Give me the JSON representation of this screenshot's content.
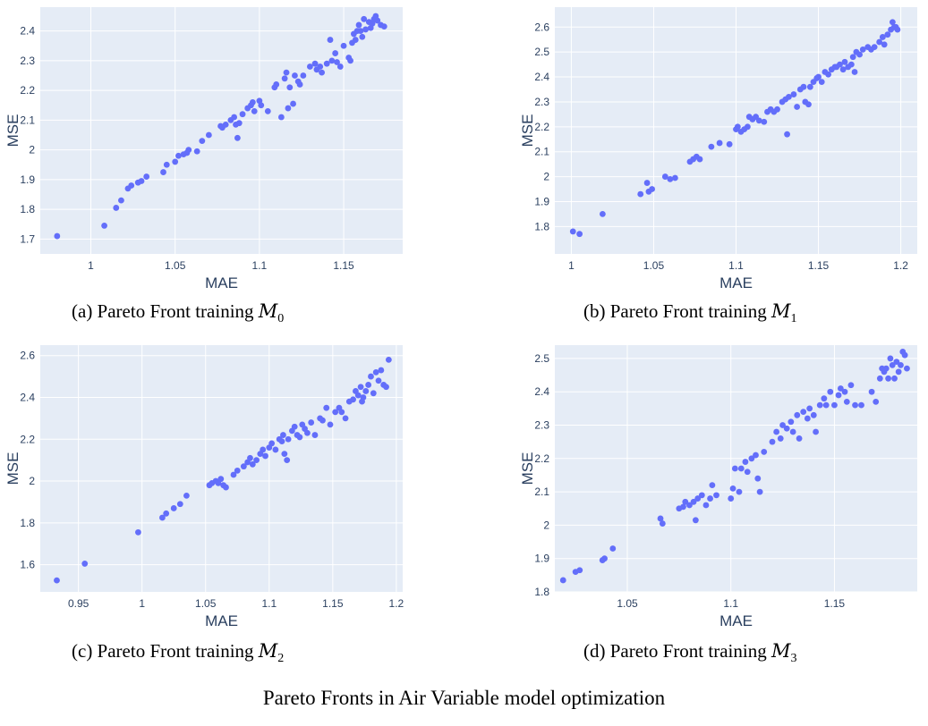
{
  "figure": {
    "title": "Pareto Fronts in Air Variable model optimization"
  },
  "colors": {
    "plot_bg": "#e5ecf6",
    "marker": "#636efa",
    "text": "#2a3f5f"
  },
  "chart_data": [
    {
      "type": "scatter",
      "caption": {
        "prefix": "(a) Pareto Front training ",
        "symbol": "M",
        "subscript": "0"
      },
      "xlabel": "MAE",
      "ylabel": "MSE",
      "xlim": [
        0.97,
        1.185
      ],
      "ylim": [
        1.65,
        2.48
      ],
      "xticks": [
        1,
        1.05,
        1.1,
        1.15
      ],
      "xtick_labels": [
        "1",
        "1.05",
        "1.1",
        "1.15"
      ],
      "yticks": [
        1.7,
        1.8,
        1.9,
        2,
        2.1,
        2.2,
        2.3,
        2.4
      ],
      "ytick_labels": [
        "1.7",
        "1.8",
        "1.9",
        "2",
        "2.1",
        "2.2",
        "2.3",
        "2.4"
      ],
      "grid": true,
      "points": [
        [
          0.98,
          1.71
        ],
        [
          1.008,
          1.745
        ],
        [
          1.015,
          1.805
        ],
        [
          1.018,
          1.83
        ],
        [
          1.022,
          1.87
        ],
        [
          1.024,
          1.88
        ],
        [
          1.028,
          1.89
        ],
        [
          1.03,
          1.895
        ],
        [
          1.033,
          1.91
        ],
        [
          1.043,
          1.925
        ],
        [
          1.045,
          1.95
        ],
        [
          1.05,
          1.96
        ],
        [
          1.052,
          1.98
        ],
        [
          1.055,
          1.985
        ],
        [
          1.057,
          1.99
        ],
        [
          1.058,
          2.0
        ],
        [
          1.063,
          1.995
        ],
        [
          1.066,
          2.03
        ],
        [
          1.07,
          2.05
        ],
        [
          1.077,
          2.08
        ],
        [
          1.078,
          2.075
        ],
        [
          1.08,
          2.085
        ],
        [
          1.083,
          2.1
        ],
        [
          1.085,
          2.11
        ],
        [
          1.086,
          2.085
        ],
        [
          1.088,
          2.09
        ],
        [
          1.087,
          2.04
        ],
        [
          1.09,
          2.12
        ],
        [
          1.093,
          2.14
        ],
        [
          1.095,
          2.15
        ],
        [
          1.096,
          2.16
        ],
        [
          1.097,
          2.13
        ],
        [
          1.1,
          2.165
        ],
        [
          1.101,
          2.15
        ],
        [
          1.105,
          2.13
        ],
        [
          1.109,
          2.21
        ],
        [
          1.11,
          2.22
        ],
        [
          1.113,
          2.11
        ],
        [
          1.115,
          2.24
        ],
        [
          1.116,
          2.26
        ],
        [
          1.117,
          2.14
        ],
        [
          1.118,
          2.21
        ],
        [
          1.12,
          2.155
        ],
        [
          1.121,
          2.25
        ],
        [
          1.123,
          2.23
        ],
        [
          1.124,
          2.22
        ],
        [
          1.126,
          2.25
        ],
        [
          1.13,
          2.28
        ],
        [
          1.133,
          2.29
        ],
        [
          1.134,
          2.27
        ],
        [
          1.136,
          2.28
        ],
        [
          1.137,
          2.26
        ],
        [
          1.14,
          2.29
        ],
        [
          1.142,
          2.37
        ],
        [
          1.143,
          2.3
        ],
        [
          1.145,
          2.325
        ],
        [
          1.146,
          2.295
        ],
        [
          1.148,
          2.28
        ],
        [
          1.15,
          2.35
        ],
        [
          1.153,
          2.31
        ],
        [
          1.154,
          2.3
        ],
        [
          1.155,
          2.36
        ],
        [
          1.156,
          2.39
        ],
        [
          1.157,
          2.37
        ],
        [
          1.158,
          2.4
        ],
        [
          1.159,
          2.42
        ],
        [
          1.16,
          2.4
        ],
        [
          1.161,
          2.38
        ],
        [
          1.162,
          2.44
        ],
        [
          1.163,
          2.405
        ],
        [
          1.165,
          2.43
        ],
        [
          1.166,
          2.41
        ],
        [
          1.167,
          2.425
        ],
        [
          1.168,
          2.44
        ],
        [
          1.169,
          2.45
        ],
        [
          1.17,
          2.435
        ],
        [
          1.172,
          2.42
        ],
        [
          1.174,
          2.415
        ]
      ]
    },
    {
      "type": "scatter",
      "caption": {
        "prefix": "(b) Pareto Front training ",
        "symbol": "M",
        "subscript": "1"
      },
      "xlabel": "MAE",
      "ylabel": "MSE",
      "xlim": [
        0.99,
        1.21
      ],
      "ylim": [
        1.69,
        2.68
      ],
      "xticks": [
        1,
        1.05,
        1.1,
        1.15,
        1.2
      ],
      "xtick_labels": [
        "1",
        "1.05",
        "1.1",
        "1.15",
        "1.2"
      ],
      "yticks": [
        1.8,
        1.9,
        2,
        2.1,
        2.2,
        2.3,
        2.4,
        2.5,
        2.6
      ],
      "ytick_labels": [
        "1.8",
        "1.9",
        "2",
        "2.1",
        "2.2",
        "2.3",
        "2.4",
        "2.5",
        "2.6"
      ],
      "grid": true,
      "points": [
        [
          1.001,
          1.78
        ],
        [
          1.005,
          1.77
        ],
        [
          1.019,
          1.85
        ],
        [
          1.042,
          1.93
        ],
        [
          1.046,
          1.975
        ],
        [
          1.047,
          1.94
        ],
        [
          1.049,
          1.95
        ],
        [
          1.057,
          2.0
        ],
        [
          1.06,
          1.99
        ],
        [
          1.063,
          1.995
        ],
        [
          1.072,
          2.06
        ],
        [
          1.074,
          2.07
        ],
        [
          1.076,
          2.08
        ],
        [
          1.078,
          2.07
        ],
        [
          1.085,
          2.12
        ],
        [
          1.09,
          2.135
        ],
        [
          1.096,
          2.13
        ],
        [
          1.1,
          2.19
        ],
        [
          1.101,
          2.2
        ],
        [
          1.103,
          2.18
        ],
        [
          1.105,
          2.19
        ],
        [
          1.107,
          2.2
        ],
        [
          1.108,
          2.24
        ],
        [
          1.11,
          2.23
        ],
        [
          1.112,
          2.24
        ],
        [
          1.114,
          2.225
        ],
        [
          1.117,
          2.22
        ],
        [
          1.119,
          2.26
        ],
        [
          1.121,
          2.27
        ],
        [
          1.123,
          2.26
        ],
        [
          1.125,
          2.27
        ],
        [
          1.128,
          2.3
        ],
        [
          1.13,
          2.31
        ],
        [
          1.131,
          2.17
        ],
        [
          1.132,
          2.32
        ],
        [
          1.135,
          2.33
        ],
        [
          1.137,
          2.28
        ],
        [
          1.139,
          2.35
        ],
        [
          1.141,
          2.36
        ],
        [
          1.142,
          2.3
        ],
        [
          1.144,
          2.29
        ],
        [
          1.145,
          2.36
        ],
        [
          1.147,
          2.38
        ],
        [
          1.149,
          2.395
        ],
        [
          1.15,
          2.4
        ],
        [
          1.152,
          2.38
        ],
        [
          1.154,
          2.42
        ],
        [
          1.156,
          2.41
        ],
        [
          1.158,
          2.43
        ],
        [
          1.16,
          2.44
        ],
        [
          1.161,
          2.44
        ],
        [
          1.163,
          2.45
        ],
        [
          1.165,
          2.43
        ],
        [
          1.166,
          2.46
        ],
        [
          1.168,
          2.44
        ],
        [
          1.17,
          2.45
        ],
        [
          1.171,
          2.48
        ],
        [
          1.173,
          2.5
        ],
        [
          1.175,
          2.49
        ],
        [
          1.177,
          2.51
        ],
        [
          1.18,
          2.52
        ],
        [
          1.182,
          2.51
        ],
        [
          1.184,
          2.52
        ],
        [
          1.187,
          2.54
        ],
        [
          1.189,
          2.56
        ],
        [
          1.19,
          2.53
        ],
        [
          1.192,
          2.57
        ],
        [
          1.194,
          2.59
        ],
        [
          1.195,
          2.62
        ],
        [
          1.196,
          2.6
        ],
        [
          1.197,
          2.6
        ],
        [
          1.198,
          2.59
        ],
        [
          1.172,
          2.42
        ]
      ]
    },
    {
      "type": "scatter",
      "caption": {
        "prefix": "(c) Pareto Front training ",
        "symbol": "M",
        "subscript": "2"
      },
      "xlabel": "MAE",
      "ylabel": "MSE",
      "xlim": [
        0.92,
        1.205
      ],
      "ylim": [
        1.47,
        2.65
      ],
      "xticks": [
        0.95,
        1,
        1.05,
        1.1,
        1.15,
        1.2
      ],
      "xtick_labels": [
        "0.95",
        "1",
        "1.05",
        "1.1",
        "1.15",
        "1.2"
      ],
      "yticks": [
        1.6,
        1.8,
        2,
        2.2,
        2.4,
        2.6
      ],
      "ytick_labels": [
        "1.6",
        "1.8",
        "2",
        "2.2",
        "2.4",
        "2.6"
      ],
      "grid": true,
      "points": [
        [
          0.933,
          1.525
        ],
        [
          0.955,
          1.605
        ],
        [
          0.997,
          1.755
        ],
        [
          1.016,
          1.825
        ],
        [
          1.019,
          1.845
        ],
        [
          1.025,
          1.87
        ],
        [
          1.03,
          1.89
        ],
        [
          1.035,
          1.93
        ],
        [
          1.053,
          1.98
        ],
        [
          1.055,
          1.99
        ],
        [
          1.058,
          2.0
        ],
        [
          1.06,
          1.99
        ],
        [
          1.062,
          2.01
        ],
        [
          1.064,
          1.98
        ],
        [
          1.066,
          1.97
        ],
        [
          1.072,
          2.03
        ],
        [
          1.075,
          2.05
        ],
        [
          1.08,
          2.07
        ],
        [
          1.083,
          2.09
        ],
        [
          1.085,
          2.11
        ],
        [
          1.087,
          2.08
        ],
        [
          1.09,
          2.1
        ],
        [
          1.093,
          2.13
        ],
        [
          1.095,
          2.15
        ],
        [
          1.097,
          2.12
        ],
        [
          1.1,
          2.16
        ],
        [
          1.102,
          2.18
        ],
        [
          1.105,
          2.15
        ],
        [
          1.108,
          2.2
        ],
        [
          1.11,
          2.19
        ],
        [
          1.111,
          2.22
        ],
        [
          1.112,
          2.13
        ],
        [
          1.114,
          2.1
        ],
        [
          1.115,
          2.2
        ],
        [
          1.118,
          2.24
        ],
        [
          1.12,
          2.26
        ],
        [
          1.122,
          2.22
        ],
        [
          1.124,
          2.21
        ],
        [
          1.126,
          2.27
        ],
        [
          1.128,
          2.25
        ],
        [
          1.13,
          2.23
        ],
        [
          1.133,
          2.28
        ],
        [
          1.136,
          2.22
        ],
        [
          1.14,
          2.3
        ],
        [
          1.142,
          2.29
        ],
        [
          1.145,
          2.35
        ],
        [
          1.148,
          2.27
        ],
        [
          1.152,
          2.33
        ],
        [
          1.155,
          2.35
        ],
        [
          1.157,
          2.33
        ],
        [
          1.16,
          2.3
        ],
        [
          1.163,
          2.38
        ],
        [
          1.166,
          2.39
        ],
        [
          1.168,
          2.43
        ],
        [
          1.17,
          2.41
        ],
        [
          1.172,
          2.45
        ],
        [
          1.174,
          2.4
        ],
        [
          1.176,
          2.43
        ],
        [
          1.178,
          2.46
        ],
        [
          1.18,
          2.5
        ],
        [
          1.182,
          2.42
        ],
        [
          1.184,
          2.52
        ],
        [
          1.186,
          2.48
        ],
        [
          1.188,
          2.53
        ],
        [
          1.19,
          2.46
        ],
        [
          1.192,
          2.45
        ],
        [
          1.194,
          2.58
        ],
        [
          1.173,
          2.38
        ]
      ]
    },
    {
      "type": "scatter",
      "caption": {
        "prefix": "(d) Pareto Front training ",
        "symbol": "M",
        "subscript": "3"
      },
      "xlabel": "MAE",
      "ylabel": "MSE",
      "xlim": [
        1.015,
        1.19
      ],
      "ylim": [
        1.8,
        2.54
      ],
      "xticks": [
        1.05,
        1.1,
        1.15
      ],
      "xtick_labels": [
        "1.05",
        "1.1",
        "1.15"
      ],
      "yticks": [
        1.8,
        1.9,
        2,
        2.1,
        2.2,
        2.3,
        2.4,
        2.5
      ],
      "ytick_labels": [
        "1.8",
        "1.9",
        "2",
        "2.1",
        "2.2",
        "2.3",
        "2.4",
        "2.5"
      ],
      "grid": true,
      "points": [
        [
          1.019,
          1.835
        ],
        [
          1.025,
          1.86
        ],
        [
          1.027,
          1.865
        ],
        [
          1.038,
          1.895
        ],
        [
          1.039,
          1.9
        ],
        [
          1.043,
          1.93
        ],
        [
          1.066,
          2.02
        ],
        [
          1.067,
          2.005
        ],
        [
          1.075,
          2.05
        ],
        [
          1.077,
          2.055
        ],
        [
          1.078,
          2.07
        ],
        [
          1.08,
          2.06
        ],
        [
          1.082,
          2.07
        ],
        [
          1.083,
          2.015
        ],
        [
          1.084,
          2.08
        ],
        [
          1.086,
          2.09
        ],
        [
          1.088,
          2.06
        ],
        [
          1.09,
          2.08
        ],
        [
          1.091,
          2.12
        ],
        [
          1.093,
          2.09
        ],
        [
          1.1,
          2.08
        ],
        [
          1.101,
          2.11
        ],
        [
          1.102,
          2.17
        ],
        [
          1.104,
          2.1
        ],
        [
          1.105,
          2.17
        ],
        [
          1.107,
          2.19
        ],
        [
          1.108,
          2.16
        ],
        [
          1.11,
          2.2
        ],
        [
          1.112,
          2.21
        ],
        [
          1.113,
          2.14
        ],
        [
          1.114,
          2.1
        ],
        [
          1.116,
          2.22
        ],
        [
          1.12,
          2.25
        ],
        [
          1.122,
          2.28
        ],
        [
          1.124,
          2.26
        ],
        [
          1.125,
          2.3
        ],
        [
          1.127,
          2.29
        ],
        [
          1.129,
          2.31
        ],
        [
          1.13,
          2.28
        ],
        [
          1.132,
          2.33
        ],
        [
          1.133,
          2.26
        ],
        [
          1.135,
          2.34
        ],
        [
          1.137,
          2.32
        ],
        [
          1.138,
          2.35
        ],
        [
          1.14,
          2.33
        ],
        [
          1.141,
          2.28
        ],
        [
          1.143,
          2.36
        ],
        [
          1.145,
          2.38
        ],
        [
          1.146,
          2.36
        ],
        [
          1.148,
          2.4
        ],
        [
          1.15,
          2.36
        ],
        [
          1.152,
          2.39
        ],
        [
          1.153,
          2.41
        ],
        [
          1.155,
          2.4
        ],
        [
          1.156,
          2.37
        ],
        [
          1.158,
          2.42
        ],
        [
          1.16,
          2.36
        ],
        [
          1.163,
          2.36
        ],
        [
          1.168,
          2.4
        ],
        [
          1.17,
          2.37
        ],
        [
          1.172,
          2.44
        ],
        [
          1.174,
          2.46
        ],
        [
          1.175,
          2.47
        ],
        [
          1.177,
          2.5
        ],
        [
          1.178,
          2.48
        ],
        [
          1.179,
          2.44
        ],
        [
          1.18,
          2.49
        ],
        [
          1.181,
          2.46
        ],
        [
          1.182,
          2.48
        ],
        [
          1.183,
          2.52
        ],
        [
          1.184,
          2.51
        ],
        [
          1.185,
          2.47
        ],
        [
          1.173,
          2.47
        ],
        [
          1.176,
          2.44
        ]
      ]
    }
  ]
}
